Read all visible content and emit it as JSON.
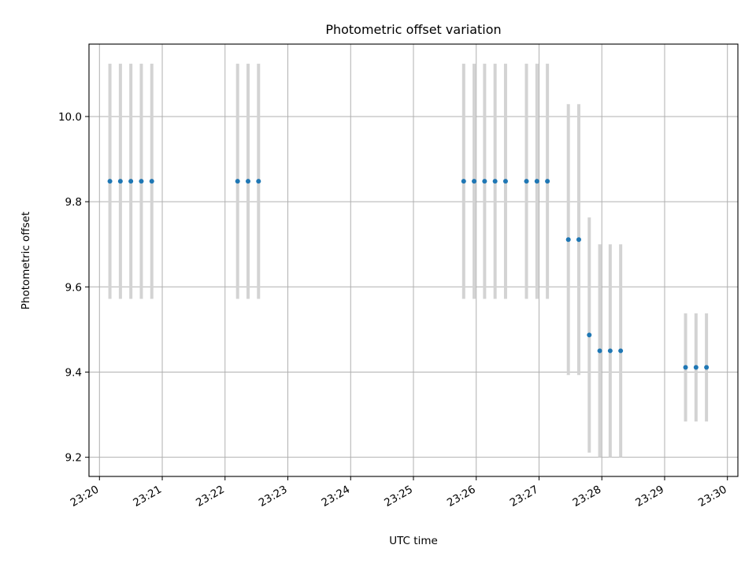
{
  "chart_data": {
    "type": "scatter",
    "title": "Photometric offset variation",
    "xlabel": "UTC time",
    "ylabel": "Photometric offset",
    "xlim": [
      "23:19:50",
      "23:30:10"
    ],
    "ylim": [
      9.155,
      10.17
    ],
    "x_ticks": [
      "23:20",
      "23:21",
      "23:22",
      "23:23",
      "23:24",
      "23:25",
      "23:26",
      "23:27",
      "23:28",
      "23:29",
      "23:30"
    ],
    "y_ticks": [
      "9.2",
      "9.4",
      "9.6",
      "9.8",
      "10.0"
    ],
    "grid": true,
    "colors": {
      "points": "#1f77b4",
      "errorbars": "#d3d3d3",
      "grid": "#b0b0b0"
    },
    "points": [
      {
        "x": "23:20:10",
        "y": 9.848,
        "err": 0.276
      },
      {
        "x": "23:20:20",
        "y": 9.848,
        "err": 0.276
      },
      {
        "x": "23:20:30",
        "y": 9.848,
        "err": 0.276
      },
      {
        "x": "23:20:40",
        "y": 9.848,
        "err": 0.276
      },
      {
        "x": "23:20:50",
        "y": 9.848,
        "err": 0.276
      },
      {
        "x": "23:22:12",
        "y": 9.848,
        "err": 0.276
      },
      {
        "x": "23:22:22",
        "y": 9.848,
        "err": 0.276
      },
      {
        "x": "23:22:32",
        "y": 9.848,
        "err": 0.276
      },
      {
        "x": "23:25:48",
        "y": 9.848,
        "err": 0.276
      },
      {
        "x": "23:25:58",
        "y": 9.848,
        "err": 0.276
      },
      {
        "x": "23:26:08",
        "y": 9.848,
        "err": 0.276
      },
      {
        "x": "23:26:18",
        "y": 9.848,
        "err": 0.276
      },
      {
        "x": "23:26:28",
        "y": 9.848,
        "err": 0.276
      },
      {
        "x": "23:26:48",
        "y": 9.848,
        "err": 0.276
      },
      {
        "x": "23:26:58",
        "y": 9.848,
        "err": 0.276
      },
      {
        "x": "23:27:08",
        "y": 9.848,
        "err": 0.276
      },
      {
        "x": "23:27:28",
        "y": 9.711,
        "err": 0.318
      },
      {
        "x": "23:27:38",
        "y": 9.711,
        "err": 0.318
      },
      {
        "x": "23:27:48",
        "y": 9.487,
        "err": 0.276
      },
      {
        "x": "23:27:58",
        "y": 9.45,
        "err": 0.25
      },
      {
        "x": "23:28:08",
        "y": 9.45,
        "err": 0.25
      },
      {
        "x": "23:28:18",
        "y": 9.45,
        "err": 0.25
      },
      {
        "x": "23:29:20",
        "y": 9.411,
        "err": 0.127
      },
      {
        "x": "23:29:30",
        "y": 9.411,
        "err": 0.127
      },
      {
        "x": "23:29:40",
        "y": 9.411,
        "err": 0.127
      }
    ]
  }
}
